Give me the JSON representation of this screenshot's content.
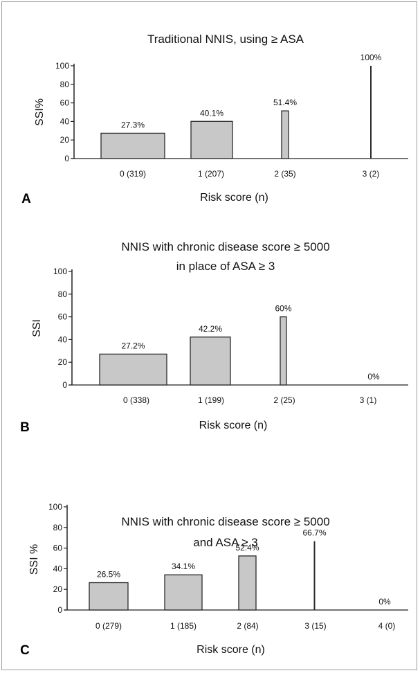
{
  "chart_data": [
    {
      "type": "bar",
      "panel_label": "A",
      "title": [
        "Traditional NNIS, using ≥ ASA"
      ],
      "ylabel": "SSI%",
      "xlabel": "Risk score (n)",
      "ylim": [
        0,
        100
      ],
      "yticks": [
        "0",
        "20",
        "40",
        "60",
        "80",
        "100"
      ],
      "categories": [
        "0 (319)",
        "1 (207)",
        "2 (35)",
        "3 (2)"
      ],
      "values": [
        27.3,
        40.1,
        51.4,
        100
      ],
      "value_labels": [
        "27.3%",
        "40.1%",
        "51.4%",
        "100%"
      ]
    },
    {
      "type": "bar",
      "panel_label": "B",
      "title": [
        "NNIS with chronic disease score ≥ 5000",
        "in place of ASA ≥ 3"
      ],
      "ylabel": "SSI",
      "xlabel": "Risk score (n)",
      "ylim": [
        0,
        100
      ],
      "yticks": [
        "0",
        "20",
        "40",
        "60",
        "80",
        "100"
      ],
      "categories": [
        "0 (338)",
        "1 (199)",
        "2 (25)",
        "3 (1)"
      ],
      "values": [
        27.2,
        42.2,
        60,
        0
      ],
      "value_labels": [
        "27.2%",
        "42.2%",
        "60%",
        "0%"
      ]
    },
    {
      "type": "bar",
      "panel_label": "C",
      "title": [
        "NNIS with chronic disease score ≥ 5000",
        "and ASA ≥ 3"
      ],
      "ylabel": "SSI %",
      "xlabel": "Risk score (n)",
      "ylim": [
        0,
        100
      ],
      "yticks": [
        "0",
        "20",
        "40",
        "60",
        "80",
        "100"
      ],
      "categories": [
        "0 (279)",
        "1 (185)",
        "2 (84)",
        "3 (15)",
        "4 (0)"
      ],
      "values": [
        26.5,
        34.1,
        52.4,
        66.7,
        0
      ],
      "value_labels": [
        "26.5%",
        "34.1%",
        "52.4%",
        "66.7%",
        "0%"
      ]
    }
  ],
  "colors": {
    "bar_fill": "#c8c8c8",
    "bar_stroke": "#2a2a2a",
    "axis": "#222222",
    "frame": "#9a9a9a"
  }
}
